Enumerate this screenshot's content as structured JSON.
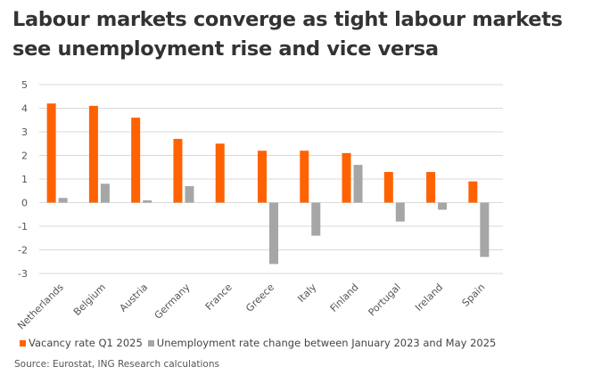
{
  "title": "Labour markets converge as tight labour markets see unemployment rise and vice versa",
  "source": "Source: Eurostat, ING Research calculations",
  "colors": {
    "vacancy": "#FF6200",
    "unemployment": "#A6A6A6",
    "grid": "#D9D9D9"
  },
  "chart_data": {
    "type": "bar",
    "title": "",
    "xlabel": "",
    "ylabel": "",
    "ylim": [
      -3,
      5
    ],
    "yticks": [
      5,
      4,
      3,
      2,
      1,
      0,
      -1,
      -2,
      -3
    ],
    "grid": true,
    "legend_position": "bottom",
    "categories": [
      "Netherlands",
      "Belgium",
      "Austria",
      "Germany",
      "France",
      "Greece",
      "Italy",
      "Finland",
      "Portugal",
      "Ireland",
      "Spain"
    ],
    "series": [
      {
        "name": "Vacancy rate Q1 2025",
        "values": [
          4.2,
          4.1,
          3.6,
          2.7,
          2.5,
          2.2,
          2.2,
          2.1,
          1.3,
          1.3,
          0.9
        ]
      },
      {
        "name": "Unemployment rate change between January 2023 and May 2025",
        "values": [
          0.2,
          0.8,
          0.1,
          0.7,
          0.0,
          -2.6,
          -1.4,
          1.6,
          -0.8,
          -0.3,
          -2.3
        ]
      }
    ]
  }
}
